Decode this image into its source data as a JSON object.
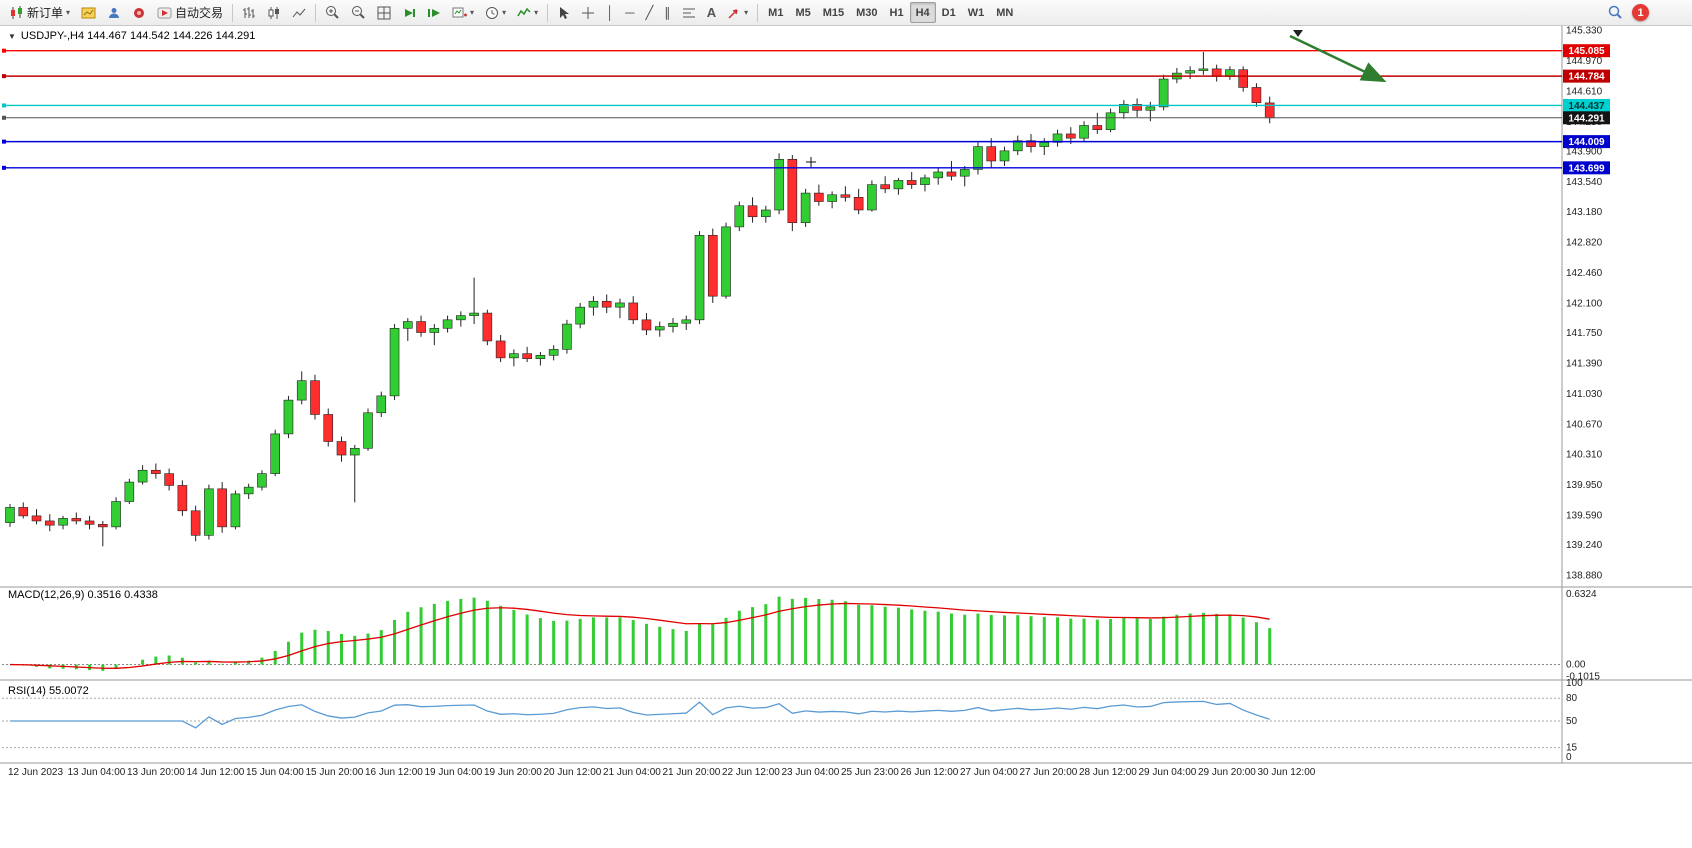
{
  "toolbar": {
    "new_order": "新订单",
    "autotrading": "自动交易",
    "timeframes": [
      "M1",
      "M5",
      "M15",
      "M30",
      "H1",
      "H4",
      "D1",
      "W1",
      "MN"
    ],
    "active_timeframe": "H4",
    "notification_count": "1"
  },
  "chart": {
    "title": "USDJPY-,H4 144.467 144.542 144.226 144.291",
    "macd_label": "MACD(12,26,9) 0.3516 0.4338",
    "rsi_label": "RSI(14) 55.0072",
    "colors": {
      "up": "#32cd32",
      "down": "#ff2d2d",
      "wick": "#222222",
      "macd_hist": "#33cc33",
      "macd_signal": "#e00000",
      "rsi_line": "#5b9bd5",
      "grid": "#9a9a9a",
      "annotation_arrow": "#2f7d2f"
    }
  },
  "chart_data": {
    "type": "candlestick",
    "symbol": "USDJPY-",
    "timeframe": "H4",
    "ohlc_last": {
      "open": 144.467,
      "high": 144.542,
      "low": 144.226,
      "close": 144.291
    },
    "price_axis": {
      "min": 138.82,
      "max": 145.39,
      "labels": [
        "145.330",
        "144.970",
        "144.610",
        "144.250",
        "143.900",
        "143.540",
        "143.180",
        "142.820",
        "142.460",
        "142.100",
        "141.750",
        "141.390",
        "141.030",
        "140.670",
        "140.310",
        "139.950",
        "139.590",
        "139.240",
        "138.880"
      ]
    },
    "levels": [
      {
        "label": "145.085",
        "value": 145.085,
        "line_color": "#ff0000",
        "badge_bg": "#e00000",
        "badge_fg": "#ffffff",
        "width": 1.4
      },
      {
        "label": "144.784",
        "value": 144.784,
        "line_color": "#c00000",
        "badge_bg": "#c00000",
        "badge_fg": "#ffffff",
        "width": 1.4
      },
      {
        "label": "144.437",
        "value": 144.437,
        "line_color": "#00c8c8",
        "badge_bg": "#00d0d0",
        "badge_fg": "#003333",
        "width": 1.4
      },
      {
        "label": "144.291",
        "value": 144.291,
        "line_color": "#555555",
        "badge_bg": "#141414",
        "badge_fg": "#ffffff",
        "width": 1
      },
      {
        "label": "144.009",
        "value": 144.009,
        "line_color": "#0000dd",
        "badge_bg": "#0000cd",
        "badge_fg": "#ffffff",
        "width": 1.4
      },
      {
        "label": "143.699",
        "value": 143.699,
        "line_color": "#0000dd",
        "badge_bg": "#0000cd",
        "badge_fg": "#ffffff",
        "width": 1.4
      }
    ],
    "indicators": {
      "macd": {
        "params": [
          12,
          26,
          9
        ],
        "display_values": [
          0.3516,
          0.4338
        ],
        "range": [
          -0.1015,
          0.6324
        ],
        "scale_labels": [
          "0.6324",
          "0.00",
          "-0.1015"
        ]
      },
      "rsi": {
        "params": [
          14
        ],
        "display_value": 55.0072,
        "scale_labels": [
          "100",
          "80",
          "50",
          "15",
          "0"
        ],
        "guide_levels": [
          80,
          50,
          15
        ]
      }
    },
    "time_axis": [
      "12 Jun 2023",
      "13 Jun 04:00",
      "13 Jun 20:00",
      "14 Jun 12:00",
      "15 Jun 04:00",
      "15 Jun 20:00",
      "16 Jun 12:00",
      "19 Jun 04:00",
      "19 Jun 20:00",
      "20 Jun 12:00",
      "21 Jun 04:00",
      "21 Jun 20:00",
      "22 Jun 12:00",
      "23 Jun 04:00",
      "25 Jun 23:00",
      "26 Jun 12:00",
      "27 Jun 04:00",
      "27 Jun 20:00",
      "28 Jun 12:00",
      "29 Jun 04:00",
      "29 Jun 20:00",
      "30 Jun 12:00"
    ],
    "annotations": [
      {
        "type": "arrow",
        "direction": "down-right",
        "color": "#2f7d2f"
      }
    ],
    "candles": [
      [
        139.5,
        139.72,
        139.45,
        139.68
      ],
      [
        139.68,
        139.74,
        139.55,
        139.58
      ],
      [
        139.58,
        139.66,
        139.48,
        139.52
      ],
      [
        139.52,
        139.6,
        139.4,
        139.47
      ],
      [
        139.47,
        139.58,
        139.42,
        139.55
      ],
      [
        139.55,
        139.62,
        139.48,
        139.52
      ],
      [
        139.52,
        139.58,
        139.42,
        139.48
      ],
      [
        139.48,
        139.52,
        139.22,
        139.45
      ],
      [
        139.45,
        139.8,
        139.42,
        139.75
      ],
      [
        139.75,
        140.02,
        139.72,
        139.98
      ],
      [
        139.98,
        140.18,
        139.95,
        140.12
      ],
      [
        140.12,
        140.2,
        140.02,
        140.08
      ],
      [
        140.08,
        140.14,
        139.88,
        139.94
      ],
      [
        139.94,
        140.0,
        139.58,
        139.64
      ],
      [
        139.64,
        139.7,
        139.28,
        139.35
      ],
      [
        139.35,
        139.95,
        139.3,
        139.9
      ],
      [
        139.9,
        139.98,
        139.38,
        139.45
      ],
      [
        139.45,
        139.88,
        139.42,
        139.84
      ],
      [
        139.84,
        139.96,
        139.78,
        139.92
      ],
      [
        139.92,
        140.12,
        139.88,
        140.08
      ],
      [
        140.08,
        140.6,
        140.05,
        140.55
      ],
      [
        140.55,
        141.0,
        140.5,
        140.95
      ],
      [
        140.95,
        141.29,
        140.9,
        141.18
      ],
      [
        141.18,
        141.25,
        140.72,
        140.78
      ],
      [
        140.78,
        140.85,
        140.4,
        140.46
      ],
      [
        140.46,
        140.52,
        140.22,
        140.3
      ],
      [
        140.3,
        140.42,
        139.74,
        140.38
      ],
      [
        140.38,
        140.85,
        140.35,
        140.8
      ],
      [
        140.8,
        141.05,
        140.75,
        141.0
      ],
      [
        141.0,
        141.85,
        140.95,
        141.8
      ],
      [
        141.8,
        141.92,
        141.65,
        141.88
      ],
      [
        141.88,
        141.95,
        141.7,
        141.75
      ],
      [
        141.75,
        141.85,
        141.6,
        141.8
      ],
      [
        141.8,
        141.95,
        141.75,
        141.9
      ],
      [
        141.9,
        142.0,
        141.82,
        141.95
      ],
      [
        141.95,
        142.4,
        141.85,
        141.98
      ],
      [
        141.98,
        142.02,
        141.6,
        141.65
      ],
      [
        141.65,
        141.72,
        141.4,
        141.45
      ],
      [
        141.45,
        141.55,
        141.35,
        141.5
      ],
      [
        141.5,
        141.58,
        141.4,
        141.44
      ],
      [
        141.44,
        141.52,
        141.36,
        141.48
      ],
      [
        141.48,
        141.6,
        141.42,
        141.55
      ],
      [
        141.55,
        141.9,
        141.5,
        141.85
      ],
      [
        141.85,
        142.1,
        141.8,
        142.05
      ],
      [
        142.05,
        142.18,
        141.95,
        142.12
      ],
      [
        142.12,
        142.2,
        141.98,
        142.05
      ],
      [
        142.05,
        142.15,
        141.92,
        142.1
      ],
      [
        142.1,
        142.18,
        141.85,
        141.9
      ],
      [
        141.9,
        141.98,
        141.72,
        141.78
      ],
      [
        141.78,
        141.88,
        141.7,
        141.82
      ],
      [
        141.82,
        141.92,
        141.75,
        141.86
      ],
      [
        141.86,
        141.95,
        141.78,
        141.9
      ],
      [
        141.9,
        142.95,
        141.85,
        142.9
      ],
      [
        142.9,
        142.98,
        142.1,
        142.18
      ],
      [
        142.18,
        143.05,
        142.15,
        143.0
      ],
      [
        143.0,
        143.3,
        142.95,
        143.25
      ],
      [
        143.25,
        143.35,
        143.05,
        143.12
      ],
      [
        143.12,
        143.25,
        143.05,
        143.2
      ],
      [
        143.2,
        143.87,
        143.15,
        143.8
      ],
      [
        143.8,
        143.85,
        142.95,
        143.05
      ],
      [
        143.05,
        143.45,
        143.0,
        143.4
      ],
      [
        143.4,
        143.5,
        143.25,
        143.3
      ],
      [
        143.3,
        143.42,
        143.22,
        143.38
      ],
      [
        143.38,
        143.48,
        143.3,
        143.35
      ],
      [
        143.35,
        143.45,
        143.15,
        143.2
      ],
      [
        143.2,
        143.55,
        143.18,
        143.5
      ],
      [
        143.5,
        143.6,
        143.4,
        143.45
      ],
      [
        143.45,
        143.58,
        143.38,
        143.55
      ],
      [
        143.55,
        143.65,
        143.45,
        143.5
      ],
      [
        143.5,
        143.62,
        143.42,
        143.58
      ],
      [
        143.58,
        143.7,
        143.5,
        143.65
      ],
      [
        143.65,
        143.78,
        143.55,
        143.6
      ],
      [
        143.6,
        143.72,
        143.48,
        143.68
      ],
      [
        143.68,
        144.0,
        143.62,
        143.95
      ],
      [
        143.95,
        144.05,
        143.7,
        143.78
      ],
      [
        143.78,
        143.95,
        143.72,
        143.9
      ],
      [
        143.9,
        144.08,
        143.85,
        144.02
      ],
      [
        144.02,
        144.1,
        143.88,
        143.95
      ],
      [
        143.95,
        144.05,
        143.85,
        144.0
      ],
      [
        144.0,
        144.15,
        143.95,
        144.1
      ],
      [
        144.1,
        144.18,
        143.98,
        144.05
      ],
      [
        144.05,
        144.25,
        144.0,
        144.2
      ],
      [
        144.2,
        144.35,
        144.1,
        144.15
      ],
      [
        144.15,
        144.4,
        144.12,
        144.35
      ],
      [
        144.35,
        144.5,
        144.28,
        144.45
      ],
      [
        144.45,
        144.52,
        144.3,
        144.38
      ],
      [
        144.38,
        144.48,
        144.25,
        144.42
      ],
      [
        144.42,
        144.8,
        144.38,
        144.75
      ],
      [
        144.75,
        144.88,
        144.7,
        144.82
      ],
      [
        144.82,
        144.9,
        144.75,
        144.85
      ],
      [
        144.85,
        145.07,
        144.8,
        144.87
      ],
      [
        144.87,
        144.92,
        144.72,
        144.78
      ],
      [
        144.78,
        144.9,
        144.74,
        144.86
      ],
      [
        144.86,
        144.9,
        144.6,
        144.65
      ],
      [
        144.65,
        144.7,
        144.42,
        144.47
      ],
      [
        144.467,
        144.542,
        144.226,
        144.291
      ]
    ]
  }
}
